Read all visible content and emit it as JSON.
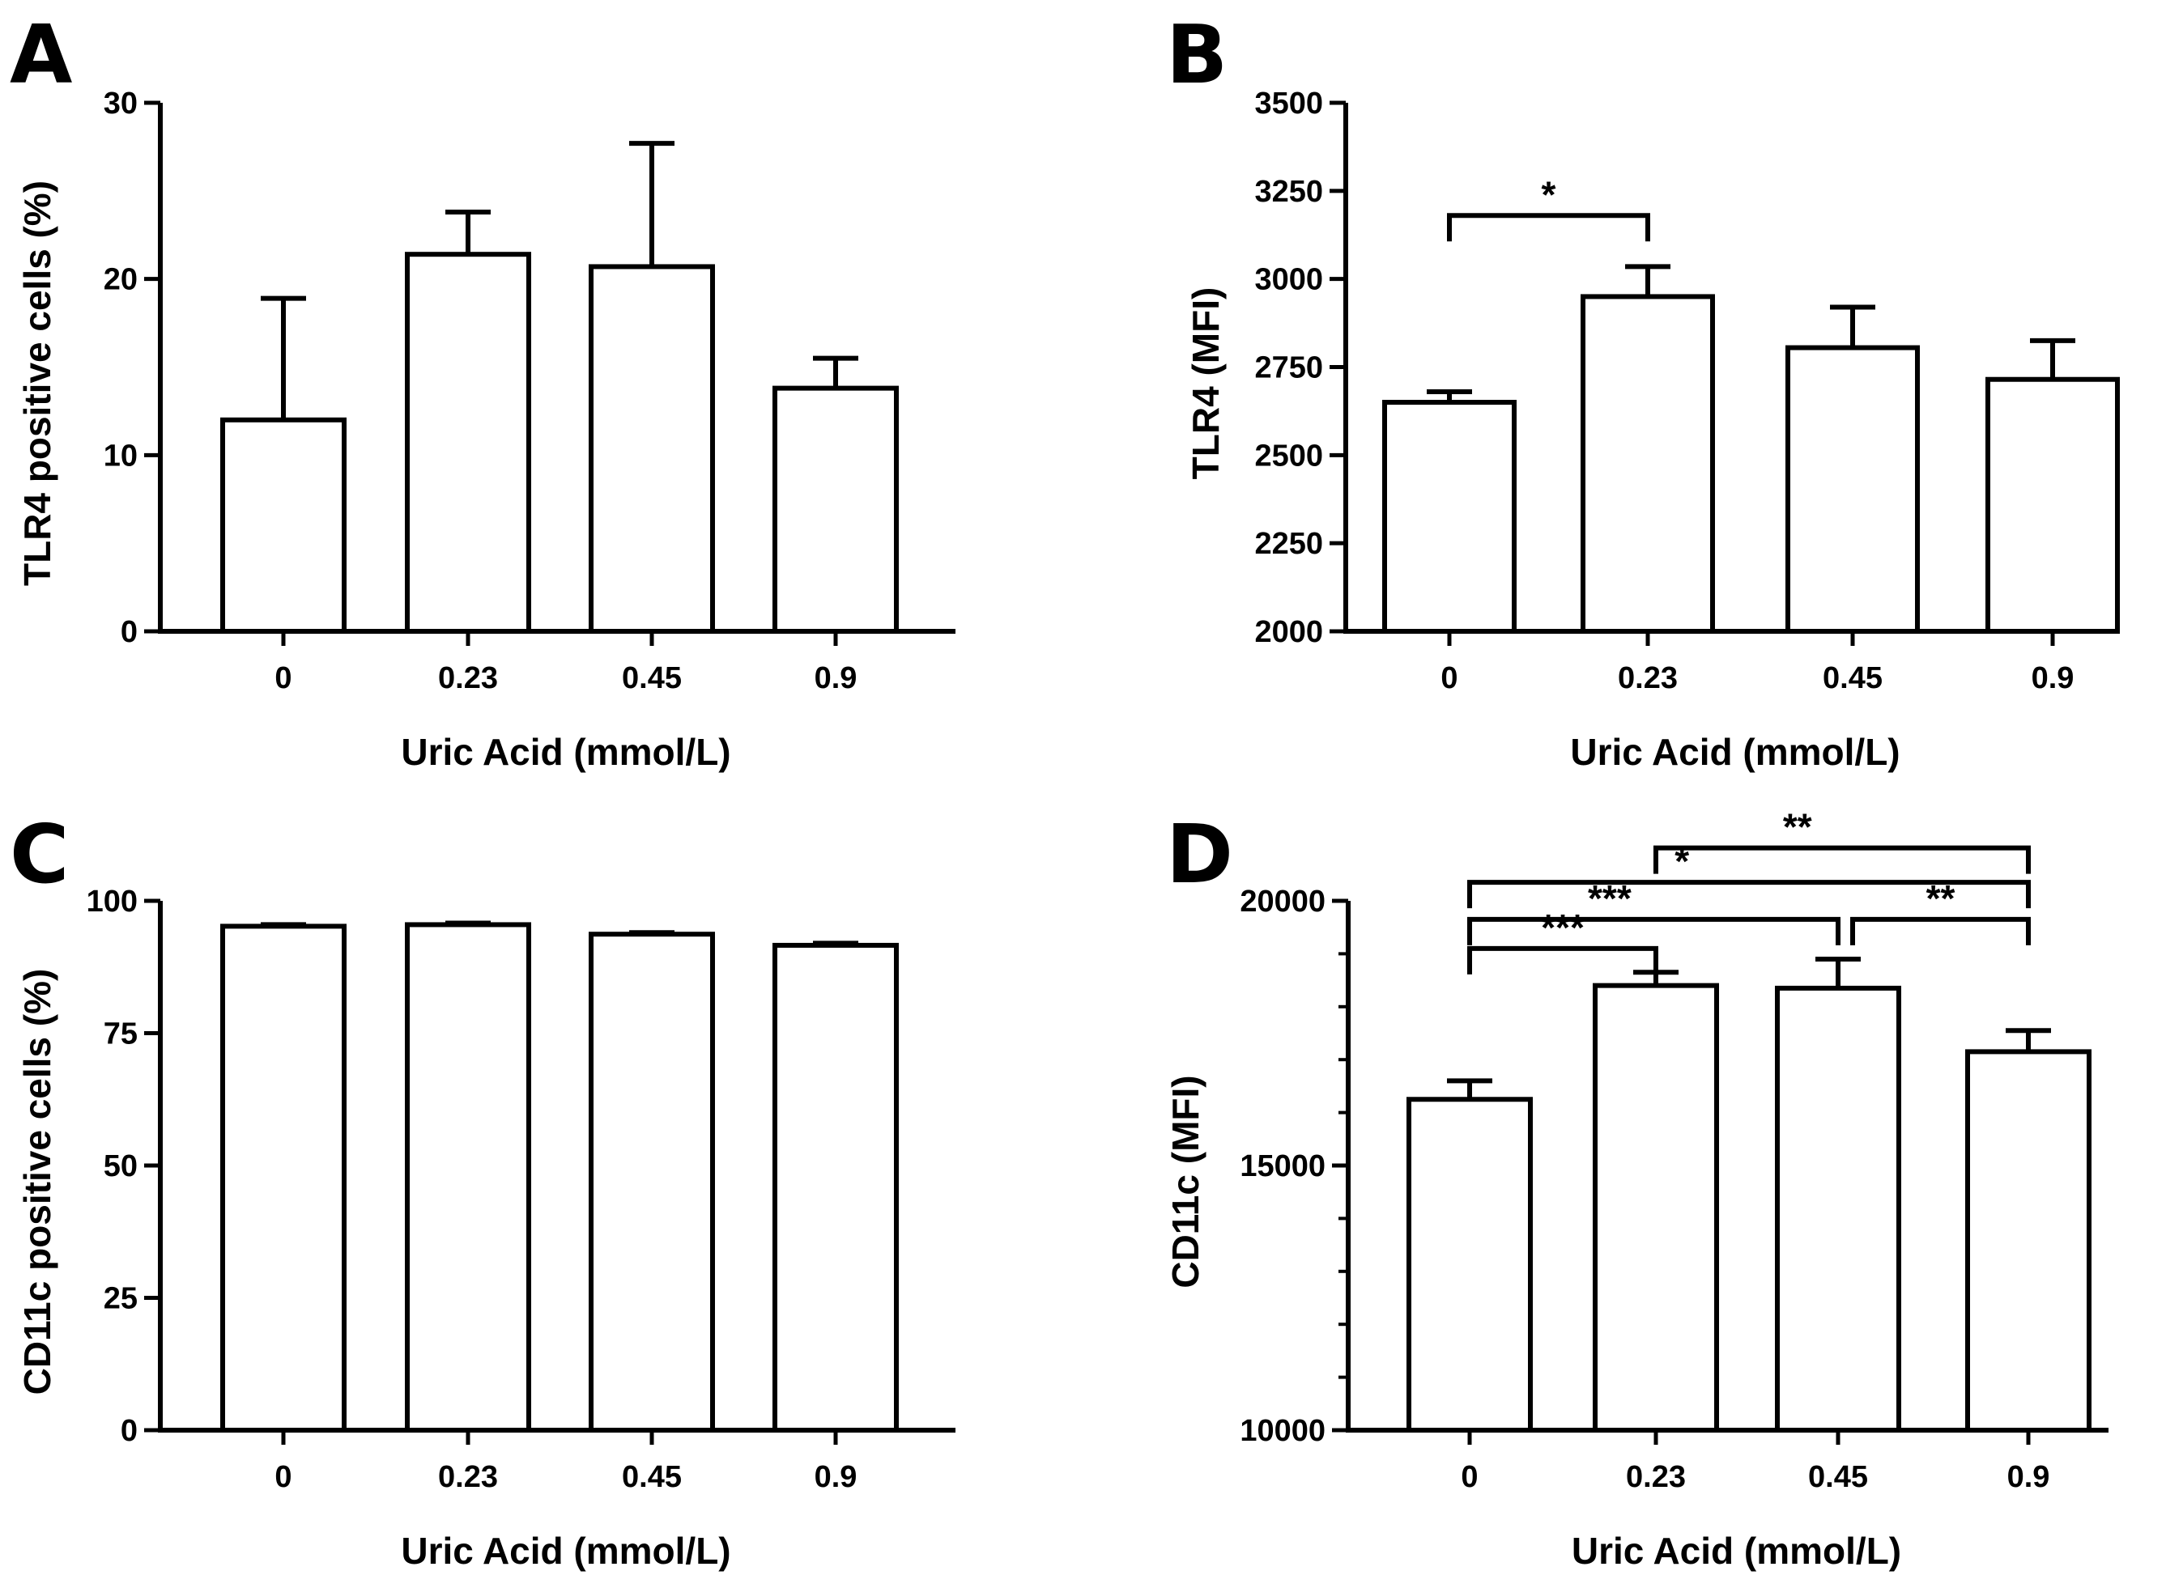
{
  "chart_data": [
    {
      "panel": "A",
      "type": "bar",
      "categories": [
        "0",
        "0.23",
        "0.45",
        "0.9"
      ],
      "values": [
        12,
        21.4,
        20.7,
        13.8
      ],
      "errors": [
        6.9,
        2.4,
        7.0,
        1.7
      ],
      "ylabel": "TLR4 positive cells (%)",
      "xlabel": "Uric Acid (mmol/L)",
      "ylim": [
        0,
        30
      ],
      "yticks": [
        0,
        10,
        20,
        30
      ],
      "ytick_labels": [
        "0",
        "10",
        "20",
        "30"
      ],
      "minor_ticks": [],
      "annotations": []
    },
    {
      "panel": "B",
      "type": "bar",
      "categories": [
        "0",
        "0.23",
        "0.45",
        "0.9"
      ],
      "values": [
        2650,
        2950,
        2805,
        2715
      ],
      "errors": [
        30,
        85,
        115,
        110
      ],
      "ylabel": "TLR4 (MFI)",
      "xlabel": "Uric Acid (mmol/L)",
      "ylim": [
        2000,
        3500
      ],
      "yticks": [
        2000,
        2250,
        2500,
        2750,
        3000,
        3250,
        3500
      ],
      "ytick_labels": [
        "2000",
        "2250",
        "2500",
        "2750",
        "3000",
        "3250",
        "3500"
      ],
      "minor_ticks": [],
      "annotations": [
        {
          "from": 0,
          "to": 1,
          "level": 3180,
          "label": "*"
        }
      ]
    },
    {
      "panel": "C",
      "type": "bar",
      "categories": [
        "0",
        "0.23",
        "0.45",
        "0.9"
      ],
      "values": [
        95.2,
        95.5,
        93.7,
        91.6
      ],
      "errors": [
        0.3,
        0.3,
        0.3,
        0.4
      ],
      "ylabel": "CD11c positive cells (%)",
      "xlabel": "Uric Acid (mmol/L)",
      "ylim": [
        0,
        100
      ],
      "yticks": [
        0,
        25,
        50,
        75,
        100
      ],
      "ytick_labels": [
        "0",
        "25",
        "50",
        "75",
        "100"
      ],
      "minor_ticks": [],
      "annotations": []
    },
    {
      "panel": "D",
      "type": "bar",
      "categories": [
        "0",
        "0.23",
        "0.45",
        "0.9"
      ],
      "values": [
        16250,
        18400,
        18350,
        17150
      ],
      "errors": [
        350,
        250,
        550,
        400
      ],
      "ylabel": "CD11c (MFI)",
      "xlabel": "Uric Acid (mmol/L)",
      "ylim": [
        10000,
        20000
      ],
      "yticks": [
        10000,
        15000,
        20000
      ],
      "ytick_labels": [
        "10000",
        "15000",
        "20000"
      ],
      "minor_ticks": [
        11000,
        12000,
        13000,
        14000,
        16000,
        17000,
        18000,
        19000
      ],
      "annotations": [
        {
          "from": 0,
          "to": 1,
          "level": 19100,
          "label": "***"
        },
        {
          "from": 0,
          "to": 2,
          "level": 19650,
          "label": "***"
        },
        {
          "from": 2,
          "to": 3,
          "level": 19650,
          "label": "**"
        },
        {
          "from": 0,
          "to": 3,
          "level": 20350,
          "label": "*"
        },
        {
          "from": 1,
          "to": 3,
          "level": 21000,
          "label": "**"
        }
      ]
    }
  ]
}
